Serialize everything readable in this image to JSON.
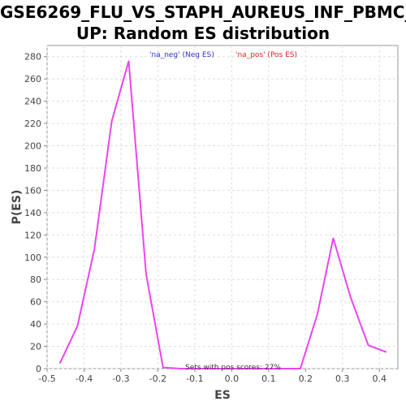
{
  "chart_data": {
    "type": "line",
    "title_line1": "GSE6269_FLU_VS_STAPH_AUREUS_INF_PBMC_",
    "title_line2": "UP: Random ES distribution",
    "xlabel": "ES",
    "ylabel": "P(ES)",
    "xlim": [
      -0.5,
      0.45
    ],
    "ylim": [
      0,
      290
    ],
    "x_ticks": [
      -0.5,
      -0.4,
      -0.3,
      -0.2,
      -0.1,
      0.0,
      0.1,
      0.2,
      0.3,
      0.4
    ],
    "x_tick_labels": [
      "-0.5",
      "-0.4",
      "-0.3",
      "-0.2",
      "-0.1",
      "0.0",
      "0.1",
      "0.2",
      "0.3",
      "0.4"
    ],
    "y_ticks": [
      0,
      20,
      40,
      60,
      80,
      100,
      120,
      140,
      160,
      180,
      200,
      220,
      240,
      260,
      280
    ],
    "y_tick_labels": [
      "0",
      "20",
      "40",
      "60",
      "80",
      "100",
      "120",
      "140",
      "160",
      "180",
      "200",
      "220",
      "240",
      "260",
      "280"
    ],
    "grid": true,
    "legend_position": "top-center",
    "legend": [
      {
        "label": "'na_neg' (Neg ES)",
        "color": "#3333cc"
      },
      {
        "label": "'na_pos' (Pos ES)",
        "color": "#dd2222"
      }
    ],
    "annotation": "Sets with pos scores: 27%",
    "series": [
      {
        "color": "#ee44ee",
        "points": [
          {
            "x": -0.465,
            "y": 5
          },
          {
            "x": -0.418,
            "y": 38
          },
          {
            "x": -0.372,
            "y": 107
          },
          {
            "x": -0.325,
            "y": 222
          },
          {
            "x": -0.279,
            "y": 276
          },
          {
            "x": -0.232,
            "y": 85
          },
          {
            "x": -0.186,
            "y": 1
          },
          {
            "x": -0.139,
            "y": 0
          },
          {
            "x": -0.093,
            "y": 0
          },
          {
            "x": -0.046,
            "y": 0
          },
          {
            "x": 0.0,
            "y": 0
          },
          {
            "x": 0.046,
            "y": 0
          },
          {
            "x": 0.093,
            "y": 0
          },
          {
            "x": 0.139,
            "y": 0
          },
          {
            "x": 0.186,
            "y": 0
          },
          {
            "x": 0.232,
            "y": 49
          },
          {
            "x": 0.275,
            "y": 117
          },
          {
            "x": 0.322,
            "y": 64
          },
          {
            "x": 0.37,
            "y": 21
          },
          {
            "x": 0.418,
            "y": 15
          }
        ]
      }
    ]
  }
}
